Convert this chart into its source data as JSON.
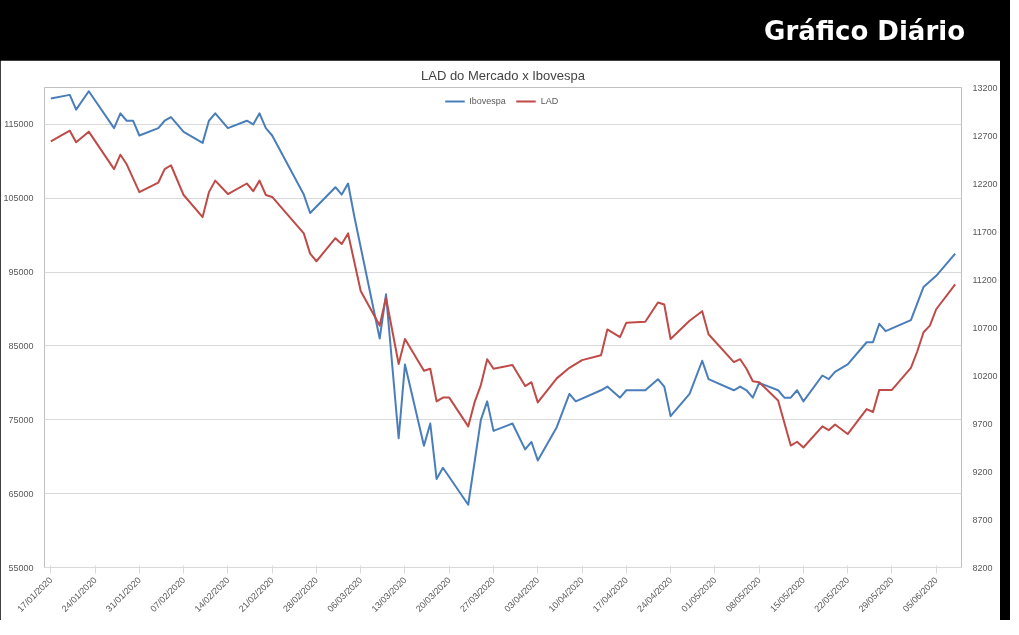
{
  "chart_data": {
    "type": "line",
    "title": "LAD do Mercado x Ibovespa",
    "annotations": [
      "Gráfico Diário"
    ],
    "legend": "top",
    "grid": "y",
    "line_style": "solid",
    "marker": "none",
    "xlim": [
      "2020-01-16",
      "2020-06-09"
    ],
    "xticks": [
      {
        "value": "2020-01-17",
        "label": "17/01/2020"
      },
      {
        "value": "2020-01-24",
        "label": "24/01/2020"
      },
      {
        "value": "2020-01-31",
        "label": "31/01/2020"
      },
      {
        "value": "2020-02-07",
        "label": "07/02/2020"
      },
      {
        "value": "2020-02-14",
        "label": "14/02/2020"
      },
      {
        "value": "2020-02-21",
        "label": "21/02/2020"
      },
      {
        "value": "2020-02-28",
        "label": "28/02/2020"
      },
      {
        "value": "2020-03-06",
        "label": "06/03/2020"
      },
      {
        "value": "2020-03-13",
        "label": "13/03/2020"
      },
      {
        "value": "2020-03-20",
        "label": "20/03/2020"
      },
      {
        "value": "2020-03-27",
        "label": "27/03/2020"
      },
      {
        "value": "2020-04-03",
        "label": "03/04/2020"
      },
      {
        "value": "2020-04-10",
        "label": "10/04/2020"
      },
      {
        "value": "2020-04-17",
        "label": "17/04/2020"
      },
      {
        "value": "2020-04-24",
        "label": "24/04/2020"
      },
      {
        "value": "2020-05-01",
        "label": "01/05/2020"
      },
      {
        "value": "2020-05-08",
        "label": "08/05/2020"
      },
      {
        "value": "2020-05-15",
        "label": "15/05/2020"
      },
      {
        "value": "2020-05-22",
        "label": "22/05/2020"
      },
      {
        "value": "2020-05-29",
        "label": "29/05/2020"
      },
      {
        "value": "2020-06-05",
        "label": "05/06/2020"
      }
    ],
    "ylim": [
      55000,
      120000
    ],
    "yticks": [
      55000,
      65000,
      75000,
      85000,
      95000,
      105000,
      115000
    ],
    "y2lim": [
      8200,
      13200
    ],
    "y2ticks": [
      8200,
      8700,
      9200,
      9700,
      10200,
      10700,
      11200,
      11700,
      12200,
      12700,
      13200
    ],
    "series": [
      {
        "name": "Ibovespa",
        "color": "#4a7ebb",
        "x": [
          "2020-01-17",
          "2020-01-20",
          "2020-01-21",
          "2020-01-23",
          "2020-01-27",
          "2020-01-28",
          "2020-01-29",
          "2020-01-30",
          "2020-01-31",
          "2020-02-03",
          "2020-02-04",
          "2020-02-05",
          "2020-02-07",
          "2020-02-10",
          "2020-02-11",
          "2020-02-12",
          "2020-02-14",
          "2020-02-17",
          "2020-02-18",
          "2020-02-19",
          "2020-02-20",
          "2020-02-21",
          "2020-02-26",
          "2020-02-27",
          "2020-03-02",
          "2020-03-03",
          "2020-03-04",
          "2020-03-05",
          "2020-03-09",
          "2020-03-10",
          "2020-03-12",
          "2020-03-13",
          "2020-03-16",
          "2020-03-17",
          "2020-03-18",
          "2020-03-19",
          "2020-03-23",
          "2020-03-25",
          "2020-03-26",
          "2020-03-27",
          "2020-03-30",
          "2020-04-01",
          "2020-04-02",
          "2020-04-03",
          "2020-04-06",
          "2020-04-08",
          "2020-04-09",
          "2020-04-13",
          "2020-04-14",
          "2020-04-16",
          "2020-04-17",
          "2020-04-20",
          "2020-04-22",
          "2020-04-23",
          "2020-04-24",
          "2020-04-27",
          "2020-04-29",
          "2020-04-30",
          "2020-05-04",
          "2020-05-05",
          "2020-05-06",
          "2020-05-07",
          "2020-05-08",
          "2020-05-11",
          "2020-05-12",
          "2020-05-13",
          "2020-05-14",
          "2020-05-15",
          "2020-05-18",
          "2020-05-19",
          "2020-05-20",
          "2020-05-22",
          "2020-05-25",
          "2020-05-26",
          "2020-05-27",
          "2020-05-28",
          "2020-06-01",
          "2020-06-03",
          "2020-06-05",
          "2020-06-08"
        ],
        "values": [
          118500,
          119000,
          117000,
          119500,
          114500,
          116500,
          115500,
          115500,
          113500,
          114500,
          115500,
          116000,
          114000,
          112500,
          115500,
          116500,
          114500,
          115500,
          115000,
          116500,
          114500,
          113500,
          105500,
          103000,
          106500,
          105500,
          107000,
          102500,
          86000,
          92000,
          72500,
          82500,
          71500,
          74500,
          67000,
          68500,
          63500,
          75000,
          77500,
          73500,
          74500,
          71000,
          72000,
          69500,
          74000,
          78500,
          77500,
          79000,
          79500,
          78000,
          79000,
          79000,
          80500,
          79500,
          75500,
          78500,
          83000,
          80500,
          79000,
          79500,
          79000,
          78000,
          80000,
          79000,
          78000,
          78000,
          79000,
          77500,
          81000,
          80500,
          81500,
          82500,
          85500,
          85500,
          88000,
          87000,
          88500,
          93000,
          94500,
          97500
        ]
      },
      {
        "name": "LAD",
        "color": "#be4b48",
        "axis": "y2",
        "x": [
          "2020-01-17",
          "2020-01-20",
          "2020-01-21",
          "2020-01-23",
          "2020-01-27",
          "2020-01-28",
          "2020-01-29",
          "2020-01-31",
          "2020-02-03",
          "2020-02-04",
          "2020-02-05",
          "2020-02-07",
          "2020-02-10",
          "2020-02-11",
          "2020-02-12",
          "2020-02-14",
          "2020-02-17",
          "2020-02-18",
          "2020-02-19",
          "2020-02-20",
          "2020-02-21",
          "2020-02-26",
          "2020-02-27",
          "2020-02-28",
          "2020-03-02",
          "2020-03-03",
          "2020-03-04",
          "2020-03-06",
          "2020-03-09",
          "2020-03-10",
          "2020-03-12",
          "2020-03-13",
          "2020-03-16",
          "2020-03-17",
          "2020-03-18",
          "2020-03-19",
          "2020-03-20",
          "2020-03-23",
          "2020-03-24",
          "2020-03-25",
          "2020-03-26",
          "2020-03-27",
          "2020-03-30",
          "2020-04-01",
          "2020-04-02",
          "2020-04-03",
          "2020-04-06",
          "2020-04-08",
          "2020-04-10",
          "2020-04-13",
          "2020-04-14",
          "2020-04-16",
          "2020-04-17",
          "2020-04-20",
          "2020-04-22",
          "2020-04-23",
          "2020-04-24",
          "2020-04-27",
          "2020-04-29",
          "2020-04-30",
          "2020-05-04",
          "2020-05-05",
          "2020-05-06",
          "2020-05-07",
          "2020-05-08",
          "2020-05-11",
          "2020-05-13",
          "2020-05-14",
          "2020-05-15",
          "2020-05-18",
          "2020-05-19",
          "2020-05-20",
          "2020-05-22",
          "2020-05-25",
          "2020-05-26",
          "2020-05-27",
          "2020-05-29",
          "2020-06-01",
          "2020-06-02",
          "2020-06-03",
          "2020-06-04",
          "2020-06-05",
          "2020-06-08"
        ],
        "values": [
          12640,
          12750,
          12630,
          12740,
          12350,
          12500,
          12400,
          12110,
          12210,
          12350,
          12390,
          12080,
          11850,
          12110,
          12230,
          12090,
          12200,
          12120,
          12230,
          12080,
          12060,
          11680,
          11470,
          11390,
          11630,
          11570,
          11680,
          11080,
          10720,
          11010,
          10320,
          10580,
          10250,
          10270,
          9930,
          9970,
          9970,
          9670,
          9920,
          10100,
          10370,
          10270,
          10310,
          10090,
          10130,
          9920,
          10170,
          10280,
          10360,
          10410,
          10680,
          10600,
          10750,
          10760,
          10960,
          10940,
          10580,
          10770,
          10870,
          10630,
          10340,
          10370,
          10270,
          10140,
          10130,
          9940,
          9470,
          9510,
          9450,
          9670,
          9630,
          9690,
          9590,
          9850,
          9820,
          10050,
          10050,
          10280,
          10450,
          10650,
          10720,
          10890,
          11150
        ]
      }
    ]
  }
}
